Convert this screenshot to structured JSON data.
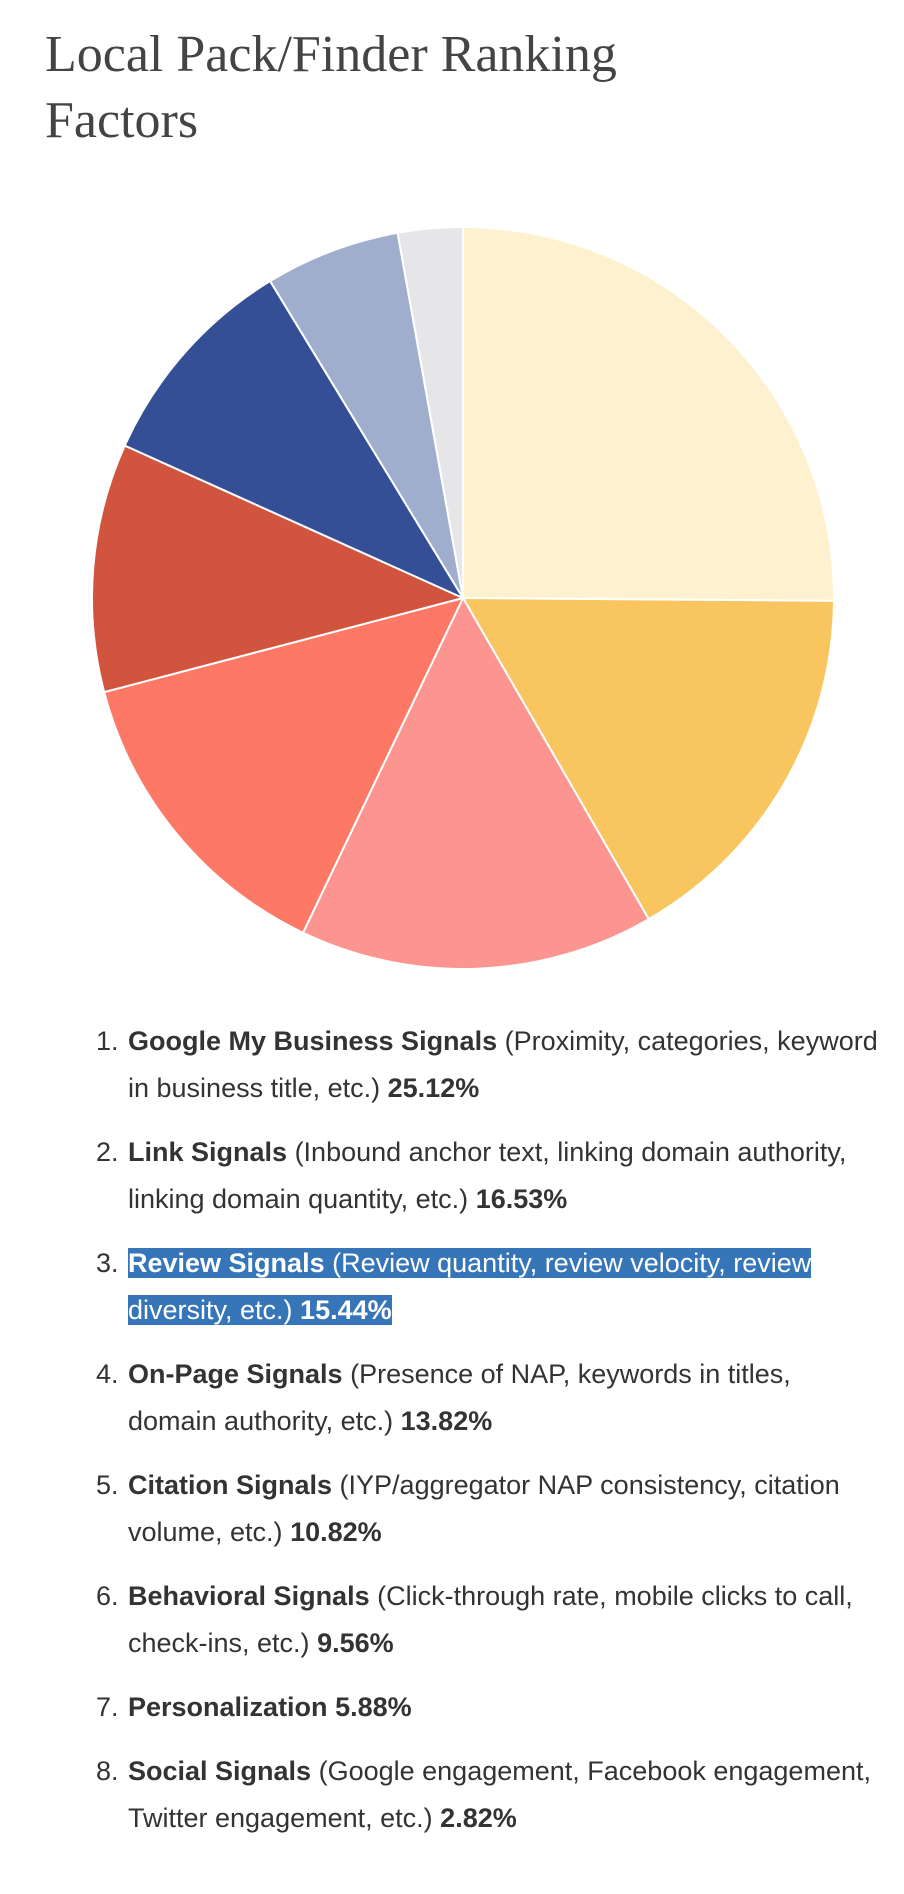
{
  "chart_data": {
    "type": "pie",
    "title": "Local Pack/Finder Ranking Factors",
    "categories": [
      "Google My Business Signals",
      "Link Signals",
      "Review Signals",
      "On-Page Signals",
      "Citation Signals",
      "Behavioral Signals",
      "Personalization",
      "Social Signals"
    ],
    "values": [
      25.12,
      16.53,
      15.44,
      13.82,
      10.82,
      9.56,
      5.88,
      2.82
    ],
    "value_labels": [
      "25.12%",
      "16.53%",
      "15.44%",
      "13.82%",
      "10.82%",
      "9.56%",
      "5.88%",
      "2.82%"
    ],
    "descriptions": [
      "(Proximity, categories, keyword in business title, etc.)",
      "(Inbound anchor text, linking domain authority, linking domain quantity, etc.)",
      "(Review quantity, review velocity, review diversity, etc.)",
      "(Presence of NAP, keywords in titles, domain authority, etc.)",
      "(IYP/aggregator NAP consistency, citation volume, etc.)",
      "(Click-through rate, mobile clicks to call, check-ins, etc.)",
      null,
      "(Google engagement, Facebook engagement, Twitter engagement, etc.)"
    ],
    "colors": [
      "#fdf1cf",
      "#f9c55e",
      "#fc9590",
      "#fe7866",
      "#d1553e",
      "#344f96",
      "#a0aecd",
      "#e6e6e8"
    ],
    "highlighted": 2
  }
}
